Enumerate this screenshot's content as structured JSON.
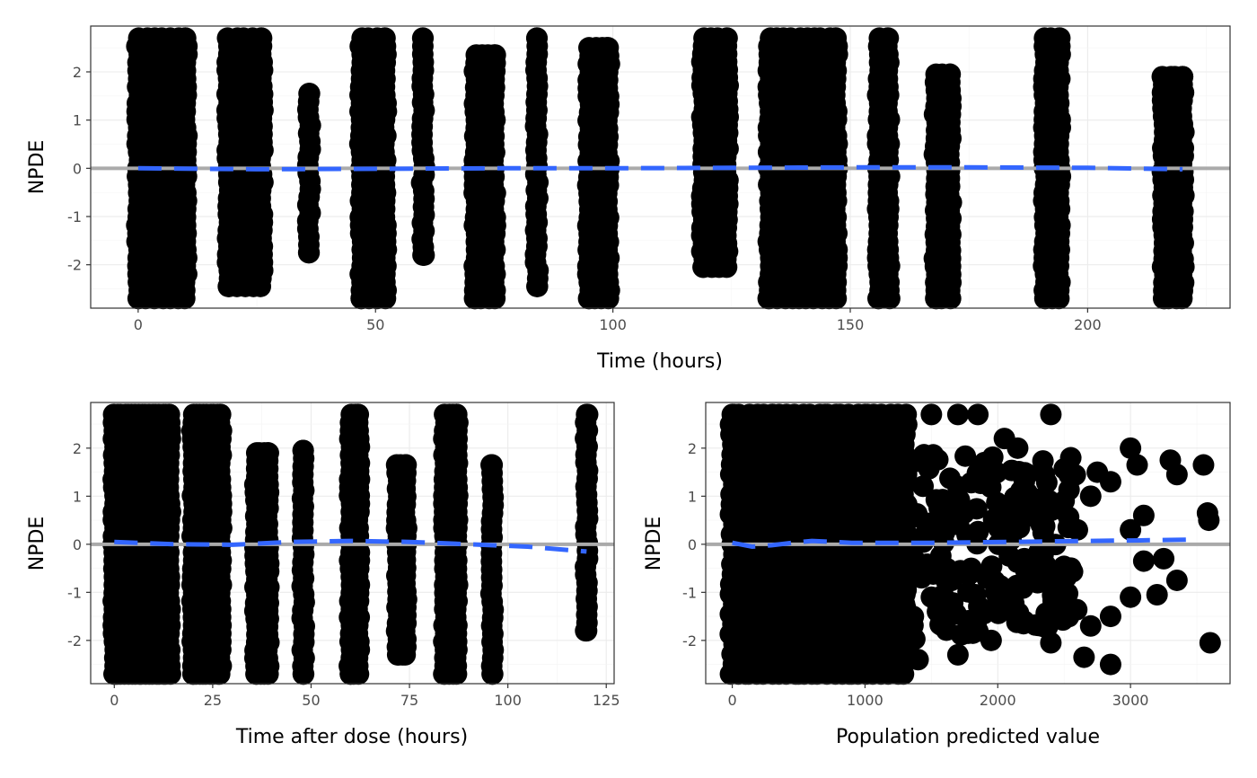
{
  "colors": {
    "points": "#000000",
    "trend": "#3366FF",
    "zero_line": "#AAAAAA",
    "grid_major": "#EBEBEB",
    "grid_minor": "#F4F4F4",
    "panel_border": "#333333"
  },
  "chart_data": [
    {
      "id": "time",
      "type": "scatter",
      "xlabel": "Time (hours)",
      "ylabel": "NPDE",
      "xlim": [
        -10,
        230
      ],
      "ylim": [
        -2.9,
        2.95
      ],
      "xticks": [
        0,
        50,
        100,
        150,
        200
      ],
      "yticks": [
        -2,
        -1,
        0,
        1,
        2
      ],
      "grid": true,
      "reference_line_y": 0,
      "clusters": [
        {
          "x": [
            0,
            10
          ],
          "y": [
            -2.7,
            2.7
          ]
        },
        {
          "x": [
            19,
            26
          ],
          "y": [
            -2.45,
            2.7
          ]
        },
        {
          "x": [
            36,
            36
          ],
          "y": [
            -1.75,
            1.55
          ]
        },
        {
          "x": [
            47,
            52
          ],
          "y": [
            -2.7,
            2.7
          ]
        },
        {
          "x": [
            60,
            60
          ],
          "y": [
            -1.8,
            2.7
          ]
        },
        {
          "x": [
            71,
            75
          ],
          "y": [
            -2.7,
            2.35
          ]
        },
        {
          "x": [
            84,
            84
          ],
          "y": [
            -2.45,
            2.7
          ]
        },
        {
          "x": [
            95,
            99
          ],
          "y": [
            -2.7,
            2.5
          ]
        },
        {
          "x": [
            119,
            124
          ],
          "y": [
            -2.05,
            2.7
          ]
        },
        {
          "x": [
            133,
            147
          ],
          "y": [
            -2.7,
            2.7
          ]
        },
        {
          "x": [
            156,
            158
          ],
          "y": [
            -2.7,
            2.7
          ]
        },
        {
          "x": [
            168,
            171
          ],
          "y": [
            -2.7,
            1.95
          ]
        },
        {
          "x": [
            191,
            194
          ],
          "y": [
            -2.7,
            2.7
          ]
        },
        {
          "x": [
            216,
            220
          ],
          "y": [
            -2.7,
            1.9
          ]
        }
      ],
      "trend": {
        "x": [
          0,
          25,
          50,
          75,
          100,
          125,
          150,
          175,
          200,
          220
        ],
        "y": [
          0.0,
          -0.02,
          -0.01,
          0.0,
          0.0,
          0.01,
          0.02,
          0.02,
          0.01,
          -0.02
        ]
      }
    },
    {
      "id": "tad",
      "type": "scatter",
      "xlabel": "Time after dose (hours)",
      "ylabel": "NPDE",
      "xlim": [
        -6,
        127
      ],
      "ylim": [
        -2.9,
        2.95
      ],
      "xticks": [
        0,
        25,
        50,
        75,
        100,
        125
      ],
      "yticks": [
        -2,
        -1,
        0,
        1,
        2
      ],
      "grid": true,
      "reference_line_y": 0,
      "clusters": [
        {
          "x": [
            0,
            14
          ],
          "y": [
            -2.7,
            2.7
          ]
        },
        {
          "x": [
            20,
            27
          ],
          "y": [
            -2.7,
            2.7
          ]
        },
        {
          "x": [
            36,
            39
          ],
          "y": [
            -2.7,
            1.9
          ]
        },
        {
          "x": [
            48,
            48
          ],
          "y": [
            -2.7,
            1.95
          ]
        },
        {
          "x": [
            60,
            62
          ],
          "y": [
            -2.7,
            2.7
          ]
        },
        {
          "x": [
            72,
            74
          ],
          "y": [
            -2.3,
            1.65
          ]
        },
        {
          "x": [
            84,
            87
          ],
          "y": [
            -2.7,
            2.7
          ]
        },
        {
          "x": [
            96,
            96
          ],
          "y": [
            -2.7,
            1.65
          ]
        },
        {
          "x": [
            120,
            120
          ],
          "y": [
            -1.8,
            2.7
          ]
        }
      ],
      "trend": {
        "x": [
          0,
          15,
          30,
          45,
          60,
          75,
          90,
          105,
          120
        ],
        "y": [
          0.05,
          0.0,
          -0.01,
          0.05,
          0.07,
          0.05,
          0.0,
          -0.05,
          -0.15
        ]
      }
    },
    {
      "id": "pred",
      "type": "scatter",
      "xlabel": "Population predicted value",
      "ylabel": "NPDE",
      "xlim": [
        -200,
        3750
      ],
      "ylim": [
        -2.9,
        2.95
      ],
      "xticks": [
        0,
        1000,
        2000,
        3000
      ],
      "yticks": [
        -2,
        -1,
        0,
        1,
        2
      ],
      "grid": true,
      "reference_line_y": 0,
      "density_points": [
        [
          0,
          2.7
        ],
        [
          100,
          -2.7
        ],
        [
          300,
          2.7
        ],
        [
          500,
          -2.7
        ],
        [
          700,
          2.7
        ],
        [
          900,
          -2.7
        ],
        [
          1000,
          2.7
        ],
        [
          1200,
          2.5
        ],
        [
          1500,
          2.7
        ],
        [
          1700,
          2.7
        ],
        [
          1850,
          2.7
        ],
        [
          2050,
          2.2
        ],
        [
          2150,
          2.0
        ],
        [
          2400,
          2.7
        ],
        [
          2550,
          1.8
        ],
        [
          2750,
          1.5
        ],
        [
          2850,
          1.3
        ],
        [
          3000,
          2.0
        ],
        [
          3050,
          1.65
        ],
        [
          3300,
          1.75
        ],
        [
          3350,
          1.45
        ],
        [
          3550,
          1.65
        ],
        [
          3580,
          0.65
        ],
        [
          3590,
          0.5
        ],
        [
          3100,
          0.6
        ],
        [
          3000,
          0.3
        ],
        [
          3100,
          -0.35
        ],
        [
          3250,
          -0.3
        ],
        [
          3000,
          -1.1
        ],
        [
          3200,
          -1.05
        ],
        [
          3350,
          -0.75
        ],
        [
          2850,
          -1.5
        ],
        [
          2700,
          -1.7
        ],
        [
          2650,
          -2.35
        ],
        [
          2850,
          -2.5
        ],
        [
          2400,
          -2.05
        ],
        [
          3600,
          -2.05
        ],
        [
          1950,
          -2.0
        ],
        [
          1700,
          -2.3
        ],
        [
          1400,
          -2.4
        ],
        [
          1250,
          -2.5
        ],
        [
          1150,
          -2.0
        ],
        [
          2200,
          -1.6
        ],
        [
          2500,
          -1.3
        ],
        [
          2300,
          -0.8
        ],
        [
          2600,
          0.3
        ],
        [
          2700,
          1.0
        ],
        [
          2500,
          0.9
        ],
        [
          2350,
          1.45
        ],
        [
          2200,
          1.3
        ],
        [
          1900,
          1.7
        ],
        [
          1700,
          1.2
        ],
        [
          1600,
          0.5
        ],
        [
          1800,
          -0.5
        ],
        [
          2000,
          -1.2
        ],
        [
          1500,
          -1.1
        ],
        [
          1300,
          -0.6
        ],
        [
          1100,
          0.9
        ],
        [
          1300,
          1.6
        ],
        [
          1000,
          1.9
        ],
        [
          800,
          2.3
        ],
        [
          700,
          1.0
        ],
        [
          900,
          -1.4
        ],
        [
          1200,
          -1.8
        ],
        [
          2100,
          0.1
        ],
        [
          2200,
          -0.3
        ]
      ],
      "dense_region": {
        "x": [
          0,
          1300
        ],
        "y": [
          -2.7,
          2.7
        ]
      },
      "trend": {
        "x": [
          0,
          150,
          300,
          450,
          600,
          900,
          1200,
          1500,
          1800,
          2100,
          2400,
          2700,
          3000,
          3300,
          3500
        ],
        "y": [
          0.03,
          -0.05,
          -0.02,
          0.03,
          0.07,
          0.03,
          0.03,
          0.03,
          0.04,
          0.05,
          0.06,
          0.07,
          0.08,
          0.09,
          0.1
        ]
      }
    }
  ]
}
